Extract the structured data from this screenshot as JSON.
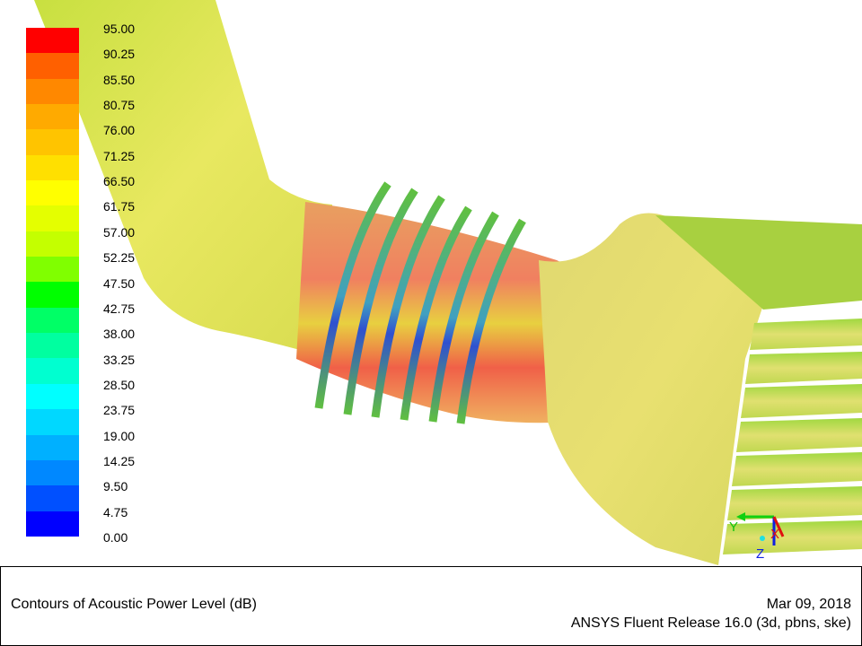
{
  "colorbar": {
    "labels": [
      "95.00",
      "90.25",
      "85.50",
      "80.75",
      "76.00",
      "71.25",
      "66.50",
      "61.75",
      "57.00",
      "52.25",
      "47.50",
      "42.75",
      "38.00",
      "33.25",
      "28.50",
      "23.75",
      "19.00",
      "14.25",
      "9.50",
      "4.75",
      "0.00"
    ],
    "band_colors": [
      "#ff0000",
      "#ff6000",
      "#ff8800",
      "#ffaa00",
      "#ffc400",
      "#ffe000",
      "#ffff00",
      "#e4ff00",
      "#c4ff00",
      "#80ff00",
      "#00ff00",
      "#00ff66",
      "#00ffa0",
      "#00ffd0",
      "#00ffff",
      "#00d8ff",
      "#00b0ff",
      "#0088ff",
      "#0050ff",
      "#0000ff"
    ]
  },
  "axes_triad": {
    "x": "X",
    "y": "Y",
    "z": "Z"
  },
  "footer": {
    "title": "Contours of Acoustic Power Level (dB)",
    "date": "Mar 09, 2018",
    "release": "ANSYS Fluent Release 16.0 (3d, pbns, ske)"
  }
}
